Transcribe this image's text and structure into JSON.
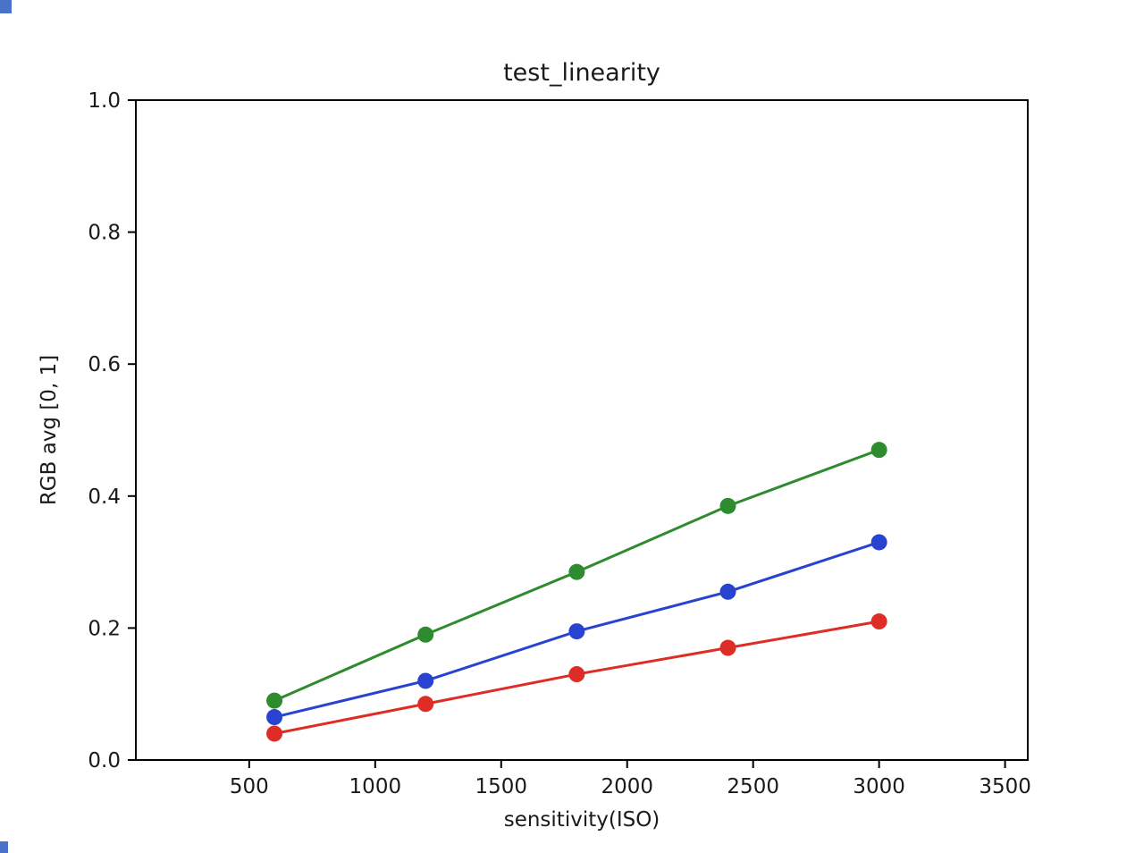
{
  "window": {
    "background": "#ffffff",
    "artifact_color": "#4a72c8"
  },
  "chart_data": {
    "type": "line",
    "title": "test_linearity",
    "xlabel": "sensitivity(ISO)",
    "ylabel": "RGB avg [0, 1]",
    "x": [
      600,
      1200,
      1800,
      2400,
      3000
    ],
    "series": [
      {
        "name": "green",
        "color": "#2e8b2e",
        "values": [
          0.09,
          0.19,
          0.285,
          0.385,
          0.47
        ]
      },
      {
        "name": "blue",
        "color": "#2743d0",
        "values": [
          0.065,
          0.12,
          0.195,
          0.255,
          0.33
        ]
      },
      {
        "name": "red",
        "color": "#de2d26",
        "values": [
          0.04,
          0.085,
          0.13,
          0.17,
          0.21
        ]
      }
    ],
    "xlim": [
      50,
      3590
    ],
    "ylim": [
      0,
      1.0
    ],
    "xticks": [
      500,
      1000,
      1500,
      2000,
      2500,
      3000,
      3500
    ],
    "yticks": [
      0.0,
      0.2,
      0.4,
      0.6,
      0.8,
      1.0
    ],
    "grid": false,
    "legend": null,
    "marker": "o",
    "line_width": 3,
    "marker_radius": 9,
    "text_color": "#1a1a1a",
    "spine_color": "#000000"
  }
}
